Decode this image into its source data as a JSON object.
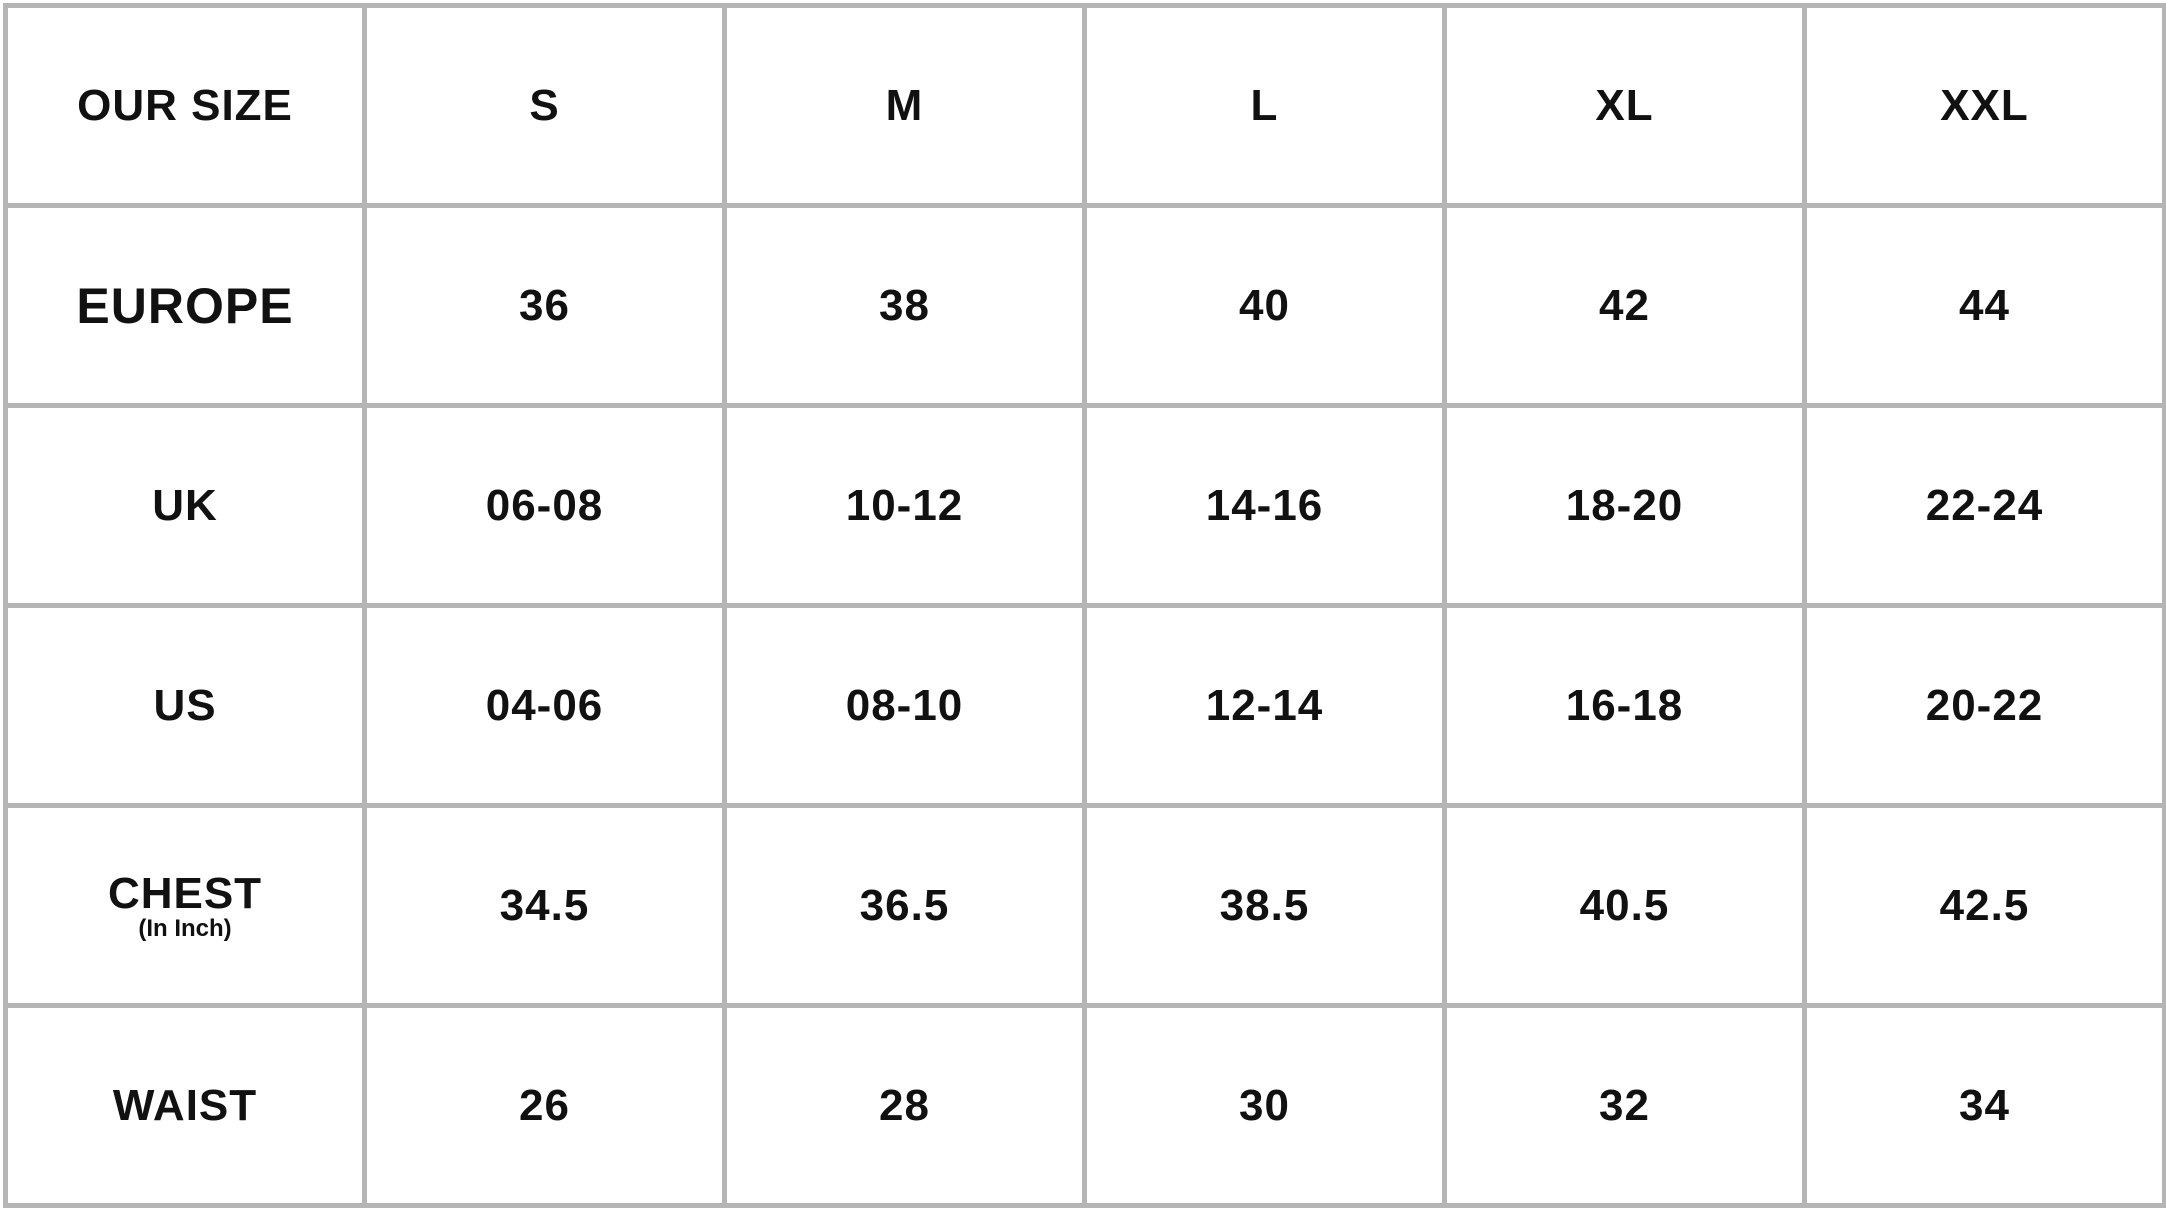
{
  "header": [
    "OUR SIZE",
    "S",
    "M",
    "L",
    "XL",
    "XXL"
  ],
  "rows": [
    {
      "label": "EUROPE",
      "sub": "",
      "values": [
        "36",
        "38",
        "40",
        "42",
        "44"
      ]
    },
    {
      "label": "UK",
      "sub": "",
      "values": [
        "06-08",
        "10-12",
        "14-16",
        "18-20",
        "22-24"
      ]
    },
    {
      "label": "US",
      "sub": "",
      "values": [
        "04-06",
        "08-10",
        "12-14",
        "16-18",
        "20-22"
      ]
    },
    {
      "label": "CHEST",
      "sub": "(In Inch)",
      "values": [
        "34.5",
        "36.5",
        "38.5",
        "40.5",
        "42.5"
      ]
    },
    {
      "label": "WAIST",
      "sub": "",
      "values": [
        "26",
        "28",
        "30",
        "32",
        "34"
      ]
    }
  ],
  "colors": {
    "grid": "#b5b5b5",
    "text": "#111111"
  }
}
